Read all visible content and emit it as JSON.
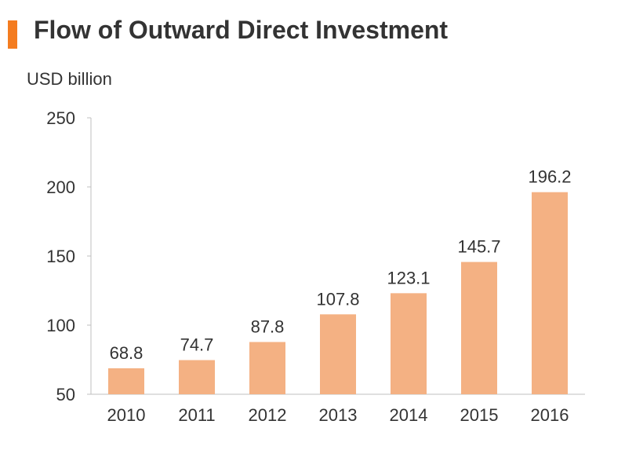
{
  "title": "Flow of Outward Direct Investment",
  "colors": {
    "accent": "#f47c20",
    "bar": "#f4b183",
    "axis": "#bfbfbf",
    "text": "#333333"
  },
  "chart_data": {
    "type": "bar",
    "title": "Flow of Outward Direct Investment",
    "ylabel": "USD billion",
    "xlabel": "",
    "categories": [
      "2010",
      "2011",
      "2012",
      "2013",
      "2014",
      "2015",
      "2016"
    ],
    "values": [
      68.8,
      74.7,
      87.8,
      107.8,
      123.1,
      145.7,
      196.2
    ],
    "value_labels": [
      "68.8",
      "74.7",
      "87.8",
      "107.8",
      "123.1",
      "145.7",
      "196.2"
    ],
    "ylim": [
      50,
      250
    ],
    "yticks": [
      50,
      100,
      150,
      200,
      250
    ],
    "grid": false,
    "legend": "none"
  }
}
